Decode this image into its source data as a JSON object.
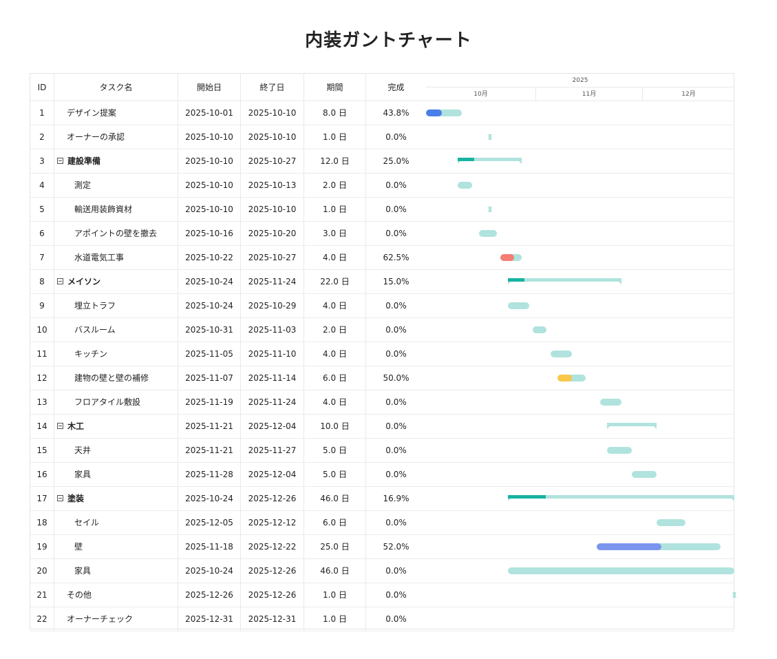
{
  "title": "内装ガントチャート",
  "columns": {
    "id": "ID",
    "name": "タスク名",
    "start": "開始日",
    "end": "終了日",
    "duration": "期間",
    "progress": "完成"
  },
  "timeline": {
    "year": "2025",
    "months": [
      "10月",
      "11月",
      "12月"
    ]
  },
  "colors": {
    "bar_track": "#b0e3dd",
    "summary_fill": "#17b3a0",
    "accent_blue": "#4a7ee8",
    "accent_red": "#f47d74",
    "accent_yellow": "#f9c84a",
    "accent_periwinkle": "#7b95ee"
  },
  "chart_data": {
    "type": "gantt",
    "x_range": [
      "2025-10-01",
      "2025-12-31"
    ],
    "tasks": [
      {
        "id": "1",
        "name": "デザイン提案",
        "start": "2025-10-01",
        "end": "2025-10-10",
        "duration": "8.0 日",
        "progress": "43.8%",
        "progress_value": 0.438,
        "level": 0,
        "type": "task",
        "color": "#4a7ee8"
      },
      {
        "id": "2",
        "name": "オーナーの承認",
        "start": "2025-10-10",
        "end": "2025-10-10",
        "duration": "1.0 日",
        "progress": "0.0%",
        "progress_value": 0,
        "level": 0,
        "type": "milestone"
      },
      {
        "id": "3",
        "name": "建設準備",
        "start": "2025-10-10",
        "end": "2025-10-27",
        "duration": "12.0 日",
        "progress": "25.0%",
        "progress_value": 0.25,
        "level": 0,
        "type": "summary"
      },
      {
        "id": "4",
        "name": "測定",
        "start": "2025-10-10",
        "end": "2025-10-13",
        "duration": "2.0 日",
        "progress": "0.0%",
        "progress_value": 0,
        "level": 1,
        "type": "task"
      },
      {
        "id": "5",
        "name": "輸送用装飾資材",
        "start": "2025-10-10",
        "end": "2025-10-10",
        "duration": "1.0 日",
        "progress": "0.0%",
        "progress_value": 0,
        "level": 1,
        "type": "milestone"
      },
      {
        "id": "6",
        "name": "アポイントの壁を撤去",
        "start": "2025-10-16",
        "end": "2025-10-20",
        "duration": "3.0 日",
        "progress": "0.0%",
        "progress_value": 0,
        "level": 1,
        "type": "task"
      },
      {
        "id": "7",
        "name": "水道電気工事",
        "start": "2025-10-22",
        "end": "2025-10-27",
        "duration": "4.0 日",
        "progress": "62.5%",
        "progress_value": 0.625,
        "level": 1,
        "type": "task",
        "color": "#f47d74"
      },
      {
        "id": "8",
        "name": "メイソン",
        "start": "2025-10-24",
        "end": "2025-11-24",
        "duration": "22.0 日",
        "progress": "15.0%",
        "progress_value": 0.15,
        "level": 0,
        "type": "summary"
      },
      {
        "id": "9",
        "name": "埋立トラフ",
        "start": "2025-10-24",
        "end": "2025-10-29",
        "duration": "4.0 日",
        "progress": "0.0%",
        "progress_value": 0,
        "level": 1,
        "type": "task"
      },
      {
        "id": "10",
        "name": "バスルーム",
        "start": "2025-10-31",
        "end": "2025-11-03",
        "duration": "2.0 日",
        "progress": "0.0%",
        "progress_value": 0,
        "level": 1,
        "type": "task"
      },
      {
        "id": "11",
        "name": "キッチン",
        "start": "2025-11-05",
        "end": "2025-11-10",
        "duration": "4.0 日",
        "progress": "0.0%",
        "progress_value": 0,
        "level": 1,
        "type": "task"
      },
      {
        "id": "12",
        "name": "建物の壁と壁の補修",
        "start": "2025-11-07",
        "end": "2025-11-14",
        "duration": "6.0 日",
        "progress": "50.0%",
        "progress_value": 0.5,
        "level": 1,
        "type": "task",
        "color": "#f9c84a"
      },
      {
        "id": "13",
        "name": "フロアタイル敷設",
        "start": "2025-11-19",
        "end": "2025-11-24",
        "duration": "4.0 日",
        "progress": "0.0%",
        "progress_value": 0,
        "level": 1,
        "type": "task"
      },
      {
        "id": "14",
        "name": "木工",
        "start": "2025-11-21",
        "end": "2025-12-04",
        "duration": "10.0 日",
        "progress": "0.0%",
        "progress_value": 0,
        "level": 0,
        "type": "summary"
      },
      {
        "id": "15",
        "name": "天井",
        "start": "2025-11-21",
        "end": "2025-11-27",
        "duration": "5.0 日",
        "progress": "0.0%",
        "progress_value": 0,
        "level": 1,
        "type": "task"
      },
      {
        "id": "16",
        "name": "家具",
        "start": "2025-11-28",
        "end": "2025-12-04",
        "duration": "5.0 日",
        "progress": "0.0%",
        "progress_value": 0,
        "level": 1,
        "type": "task"
      },
      {
        "id": "17",
        "name": "塗装",
        "start": "2025-10-24",
        "end": "2025-12-26",
        "duration": "46.0 日",
        "progress": "16.9%",
        "progress_value": 0.169,
        "level": 0,
        "type": "summary"
      },
      {
        "id": "18",
        "name": "セイル",
        "start": "2025-12-05",
        "end": "2025-12-12",
        "duration": "6.0 日",
        "progress": "0.0%",
        "progress_value": 0,
        "level": 1,
        "type": "task"
      },
      {
        "id": "19",
        "name": "壁",
        "start": "2025-11-18",
        "end": "2025-12-22",
        "duration": "25.0 日",
        "progress": "52.0%",
        "progress_value": 0.52,
        "level": 1,
        "type": "task",
        "color": "#7b95ee"
      },
      {
        "id": "20",
        "name": "家具",
        "start": "2025-10-24",
        "end": "2025-12-26",
        "duration": "46.0 日",
        "progress": "0.0%",
        "progress_value": 0,
        "level": 1,
        "type": "task"
      },
      {
        "id": "21",
        "name": "その他",
        "start": "2025-12-26",
        "end": "2025-12-26",
        "duration": "1.0 日",
        "progress": "0.0%",
        "progress_value": 0,
        "level": 0,
        "type": "milestone"
      },
      {
        "id": "22",
        "name": "オーナーチェック",
        "start": "2025-12-31",
        "end": "2025-12-31",
        "duration": "1.0 日",
        "progress": "0.0%",
        "progress_value": 0,
        "level": 0,
        "type": "milestone"
      }
    ]
  }
}
